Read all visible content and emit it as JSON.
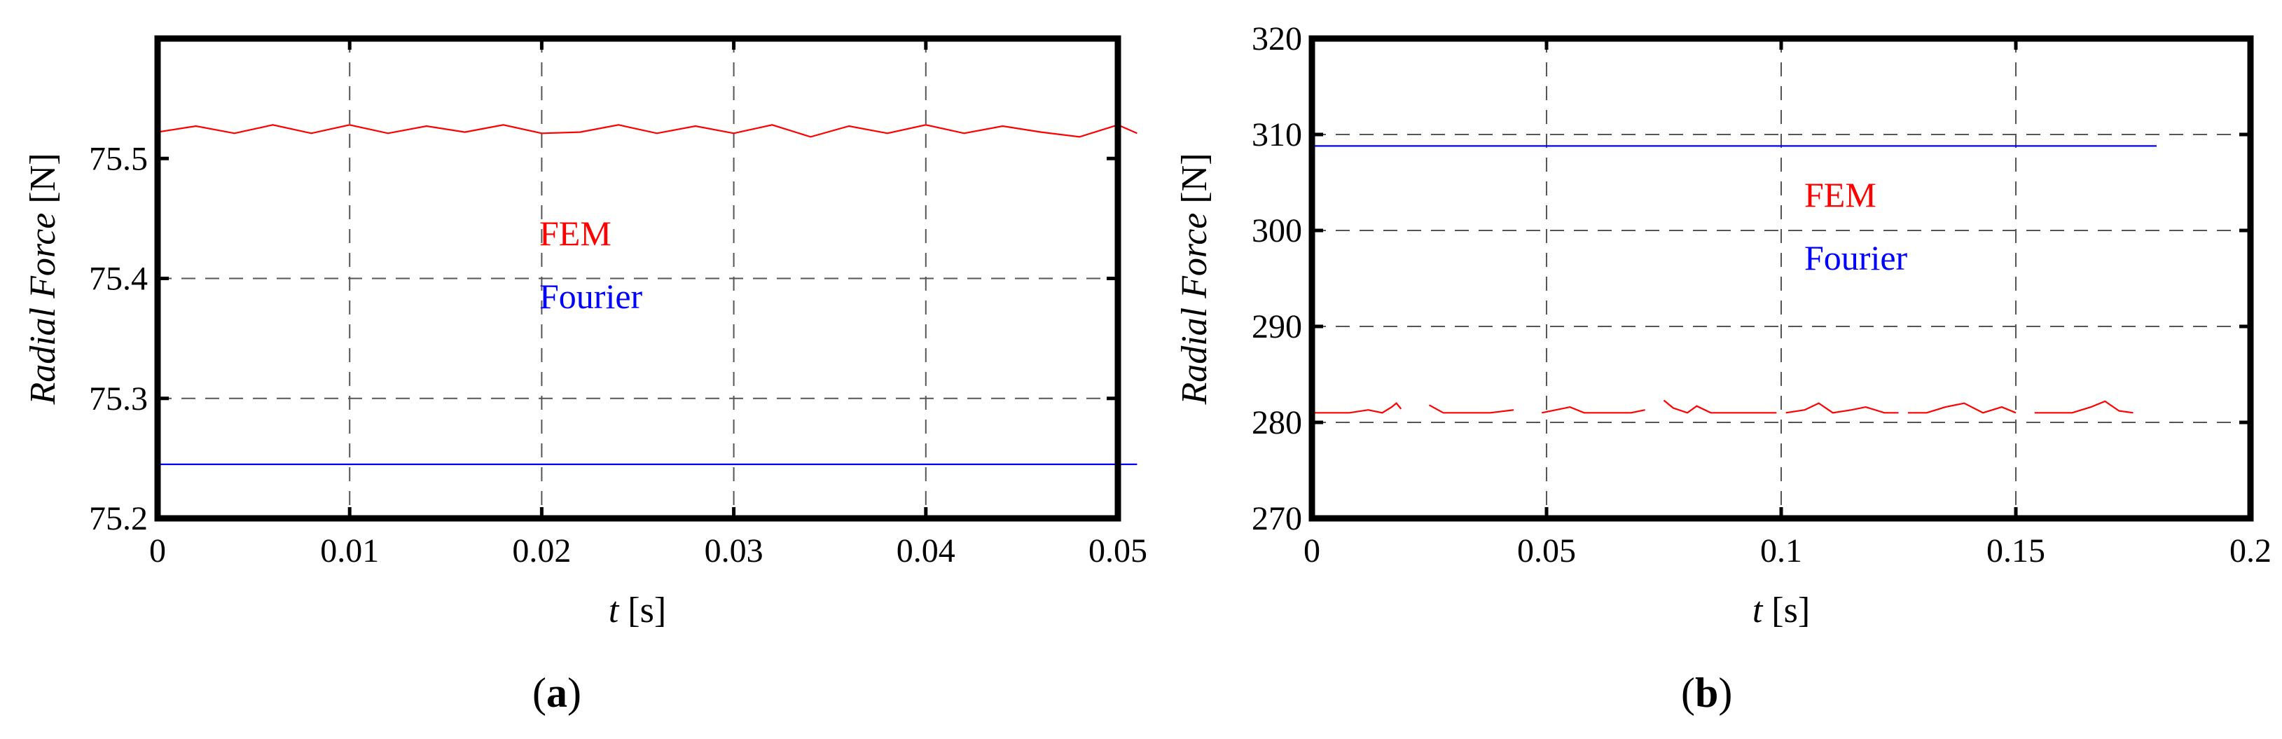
{
  "chart_data": [
    {
      "type": "line",
      "panel_label": "a",
      "xlabel_var": "t",
      "xlabel_unit": "[s]",
      "ylabel_var": "Radial Force",
      "ylabel_unit": "[N]",
      "xlim": [
        0,
        0.05
      ],
      "ylim": [
        75.2,
        75.6
      ],
      "x_ticks": [
        "0",
        "0.01",
        "0.02",
        "0.03",
        "0.04",
        "0.05"
      ],
      "y_ticks": [
        "75.2",
        "75.3",
        "75.4",
        "75.5"
      ],
      "grid": true,
      "legend": [
        "FEM",
        "Fourier"
      ],
      "colors": {
        "FEM": "#ff0000",
        "Fourier": "#0000ff"
      },
      "series": [
        {
          "name": "FEM",
          "x": [
            0,
            0.002,
            0.004,
            0.006,
            0.008,
            0.01,
            0.012,
            0.014,
            0.016,
            0.018,
            0.02,
            0.022,
            0.024,
            0.026,
            0.028,
            0.03,
            0.032,
            0.034,
            0.036,
            0.038,
            0.04,
            0.042,
            0.044,
            0.046,
            0.048,
            0.05,
            0.051
          ],
          "y": [
            75.522,
            75.527,
            75.521,
            75.528,
            75.521,
            75.528,
            75.521,
            75.527,
            75.522,
            75.528,
            75.521,
            75.522,
            75.528,
            75.521,
            75.527,
            75.521,
            75.528,
            75.518,
            75.527,
            75.521,
            75.528,
            75.521,
            75.527,
            75.522,
            75.518,
            75.528,
            75.521
          ]
        },
        {
          "name": "Fourier",
          "x": [
            0,
            0.051
          ],
          "y": [
            75.245,
            75.245
          ]
        }
      ]
    },
    {
      "type": "line",
      "panel_label": "b",
      "xlabel_var": "t",
      "xlabel_unit": "[s]",
      "ylabel_var": "Radial Force",
      "ylabel_unit": "[N]",
      "xlim": [
        0,
        0.2
      ],
      "ylim": [
        270,
        320
      ],
      "x_ticks": [
        "0",
        "0.05",
        "0.1",
        "0.15",
        "0.2"
      ],
      "y_ticks": [
        "270",
        "280",
        "290",
        "300",
        "310",
        "320"
      ],
      "grid": true,
      "legend": [
        "FEM",
        "Fourier"
      ],
      "colors": {
        "FEM": "#ff0000",
        "Fourier": "#0000ff"
      },
      "series": [
        {
          "name": "Fourier",
          "x": [
            0,
            0.18
          ],
          "y": [
            308.8,
            308.8
          ]
        }
      ],
      "fem_segments": [
        {
          "x": [
            0,
            0.008,
            0.012,
            0.015,
            0.017,
            0.018,
            0.019
          ],
          "y": [
            281.0,
            281.0,
            281.3,
            281.0,
            281.6,
            282.0,
            281.4
          ]
        },
        {
          "x": [
            0.025,
            0.028,
            0.033,
            0.038,
            0.043
          ],
          "y": [
            281.8,
            281.0,
            281.0,
            281.0,
            281.3
          ]
        },
        {
          "x": [
            0.049,
            0.052,
            0.055,
            0.058,
            0.063,
            0.068,
            0.071
          ],
          "y": [
            281.0,
            281.3,
            281.6,
            281.0,
            281.0,
            281.0,
            281.3
          ]
        },
        {
          "x": [
            0.075,
            0.077,
            0.08,
            0.082,
            0.085,
            0.09,
            0.095,
            0.099
          ],
          "y": [
            282.3,
            281.5,
            281.0,
            281.7,
            281.0,
            281.0,
            281.0,
            281.0
          ]
        },
        {
          "x": [
            0.101,
            0.105,
            0.108,
            0.111,
            0.115,
            0.118,
            0.122,
            0.125
          ],
          "y": [
            281.0,
            281.3,
            282.0,
            281.0,
            281.3,
            281.6,
            281.0,
            281.0
          ]
        },
        {
          "x": [
            0.127,
            0.131,
            0.135,
            0.139,
            0.143,
            0.147,
            0.15
          ],
          "y": [
            281.0,
            281.0,
            281.6,
            282.0,
            281.0,
            281.6,
            281.0
          ]
        },
        {
          "x": [
            0.154,
            0.158,
            0.162,
            0.166,
            0.169,
            0.172,
            0.175
          ],
          "y": [
            281.0,
            281.0,
            281.0,
            281.6,
            282.2,
            281.2,
            281.0
          ]
        }
      ]
    }
  ],
  "captions": [
    {
      "open": "(",
      "letter": "a",
      "close": ")"
    },
    {
      "open": "(",
      "letter": "b",
      "close": ")"
    }
  ]
}
